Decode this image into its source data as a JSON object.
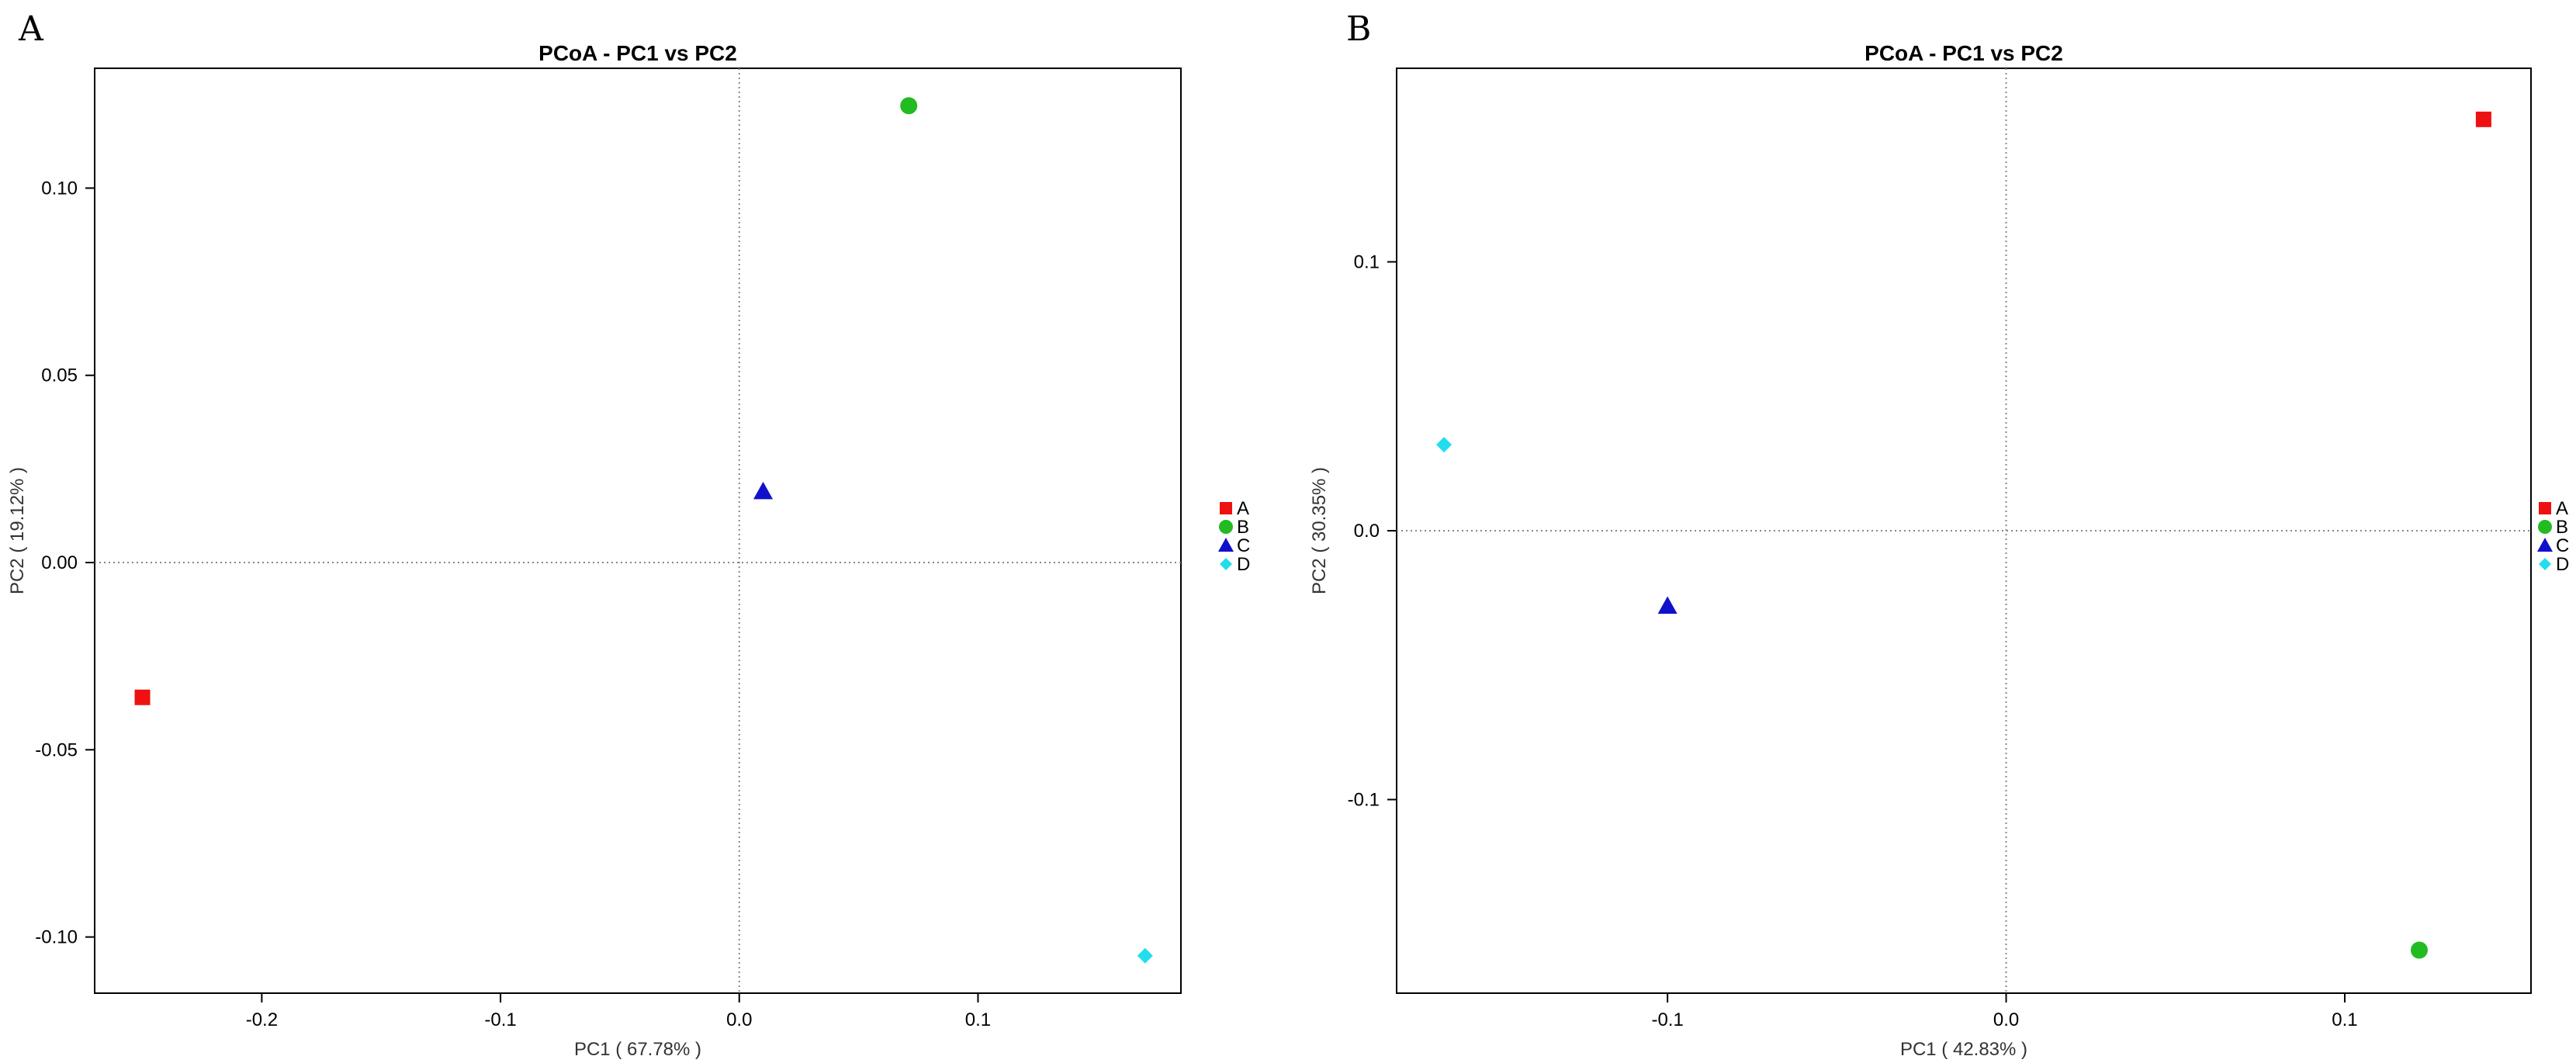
{
  "chart_data": [
    {
      "panel": "A",
      "type": "scatter",
      "title": "PCoA - PC1 vs PC2",
      "xlabel": "PC1 ( 67.78% )",
      "ylabel": "PC2 ( 19.12% )",
      "xlim": [
        -0.27,
        0.185
      ],
      "ylim": [
        -0.115,
        0.132
      ],
      "xticks": [
        -0.2,
        -0.1,
        0.0,
        0.1
      ],
      "xtick_labels": [
        "-0.2",
        "-0.1",
        "0.0",
        "0.1"
      ],
      "yticks": [
        -0.1,
        -0.05,
        0.0,
        0.05,
        0.1
      ],
      "ytick_labels": [
        "-0.10",
        "-0.05",
        "0.00",
        "0.05",
        "0.10"
      ],
      "points": [
        {
          "label": "A",
          "x": -0.25,
          "y": -0.036,
          "color": "#ee1111",
          "marker": "square"
        },
        {
          "label": "B",
          "x": 0.071,
          "y": 0.122,
          "color": "#22bb22",
          "marker": "circle"
        },
        {
          "label": "C",
          "x": 0.01,
          "y": 0.019,
          "color": "#1111cc",
          "marker": "triangle"
        },
        {
          "label": "D",
          "x": 0.17,
          "y": -0.105,
          "color": "#22ddee",
          "marker": "diamond"
        }
      ],
      "reference_lines": {
        "x": 0,
        "y": 0
      },
      "legend": [
        "A",
        "B",
        "C",
        "D"
      ]
    },
    {
      "panel": "B",
      "type": "scatter",
      "title": "PCoA - PC1 vs PC2",
      "xlabel": "PC1 ( 42.83% )",
      "ylabel": "PC2 ( 30.35% )",
      "xlim": [
        -0.18,
        0.155
      ],
      "ylim": [
        -0.172,
        0.172
      ],
      "xticks": [
        -0.1,
        0.0,
        0.1
      ],
      "xtick_labels": [
        "-0.1",
        "0.0",
        "0.1"
      ],
      "yticks": [
        -0.1,
        0.0,
        0.1
      ],
      "ytick_labels": [
        "-0.1",
        "0.0",
        "0.1"
      ],
      "points": [
        {
          "label": "A",
          "x": 0.141,
          "y": 0.153,
          "color": "#ee1111",
          "marker": "square"
        },
        {
          "label": "B",
          "x": 0.122,
          "y": -0.156,
          "color": "#22bb22",
          "marker": "circle"
        },
        {
          "label": "C",
          "x": -0.1,
          "y": -0.028,
          "color": "#1111cc",
          "marker": "triangle"
        },
        {
          "label": "D",
          "x": -0.166,
          "y": 0.032,
          "color": "#22ddee",
          "marker": "diamond"
        }
      ],
      "reference_lines": {
        "x": 0,
        "y": 0
      },
      "legend": [
        "A",
        "B",
        "C",
        "D"
      ]
    }
  ]
}
